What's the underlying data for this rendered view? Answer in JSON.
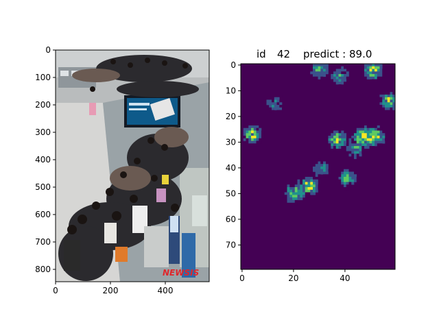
{
  "figure": {
    "left_panel": {
      "type": "image",
      "description": "crowded airport terminal queue photograph",
      "watermark": "NEWSIS",
      "x_ticks": [
        "0",
        "200",
        "400"
      ],
      "y_ticks": [
        "0",
        "100",
        "200",
        "300",
        "400",
        "500",
        "600",
        "700",
        "800"
      ],
      "xlim": [
        0,
        560
      ],
      "ylim": [
        0,
        840
      ]
    },
    "right_panel": {
      "title_id_label": "id",
      "title_id_value": "42",
      "title_predict_label": "predict : 89.0",
      "x_ticks": [
        "0",
        "20",
        "40"
      ],
      "y_ticks": [
        "0",
        "10",
        "20",
        "30",
        "40",
        "50",
        "60",
        "70"
      ],
      "colormap": [
        "#440154",
        "#3b528b",
        "#21918c",
        "#5ec962",
        "#fde725"
      ]
    }
  },
  "chart_data": [
    {
      "type": "image",
      "title": "",
      "x_ticks": [
        0,
        200,
        400
      ],
      "y_ticks": [
        0,
        100,
        200,
        300,
        400,
        500,
        600,
        700,
        800
      ],
      "xlim": [
        0,
        560
      ],
      "ylim": [
        840,
        0
      ]
    },
    {
      "type": "heatmap",
      "title": "id   42   predict : 89.0",
      "grid_size": [
        60,
        80
      ],
      "xlim": [
        0,
        60
      ],
      "ylim": [
        80,
        0
      ],
      "x_ticks": [
        0,
        20,
        40
      ],
      "y_ticks": [
        0,
        10,
        20,
        30,
        40,
        50,
        60,
        70
      ],
      "colormap": "viridis",
      "hotspots": [
        {
          "x": 30,
          "y": 2,
          "value": 0.7
        },
        {
          "x": 38,
          "y": 4,
          "value": 0.6
        },
        {
          "x": 51,
          "y": 2,
          "value": 1.0
        },
        {
          "x": 57,
          "y": 14,
          "value": 0.8
        },
        {
          "x": 13,
          "y": 15,
          "value": 0.5
        },
        {
          "x": 4,
          "y": 27,
          "value": 0.9
        },
        {
          "x": 37,
          "y": 29,
          "value": 0.9
        },
        {
          "x": 47,
          "y": 28,
          "value": 1.0
        },
        {
          "x": 52,
          "y": 28,
          "value": 0.9
        },
        {
          "x": 44,
          "y": 33,
          "value": 0.5
        },
        {
          "x": 26,
          "y": 47,
          "value": 1.0
        },
        {
          "x": 20,
          "y": 50,
          "value": 0.8
        },
        {
          "x": 41,
          "y": 44,
          "value": 0.7
        },
        {
          "x": 31,
          "y": 40,
          "value": 0.5
        }
      ]
    }
  ]
}
